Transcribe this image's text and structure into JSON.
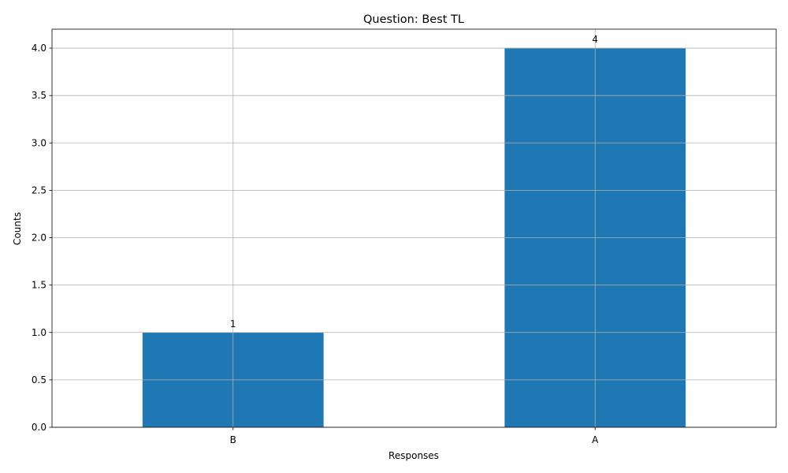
{
  "chart_data": {
    "type": "bar",
    "title": "Question: Best TL",
    "xlabel": "Responses",
    "ylabel": "Counts",
    "categories": [
      "B",
      "A"
    ],
    "values": [
      1,
      4
    ],
    "data_labels": [
      "1",
      "4"
    ],
    "ylim": [
      0,
      4.2
    ],
    "yticks": [
      0.0,
      0.5,
      1.0,
      1.5,
      2.0,
      2.5,
      3.0,
      3.5,
      4.0
    ],
    "ytick_labels": [
      "0.0",
      "0.5",
      "1.0",
      "1.5",
      "2.0",
      "2.5",
      "3.0",
      "3.5",
      "4.0"
    ],
    "grid": true,
    "bar_color": "#1f77b4",
    "grid_color": "#b0b0b0"
  }
}
